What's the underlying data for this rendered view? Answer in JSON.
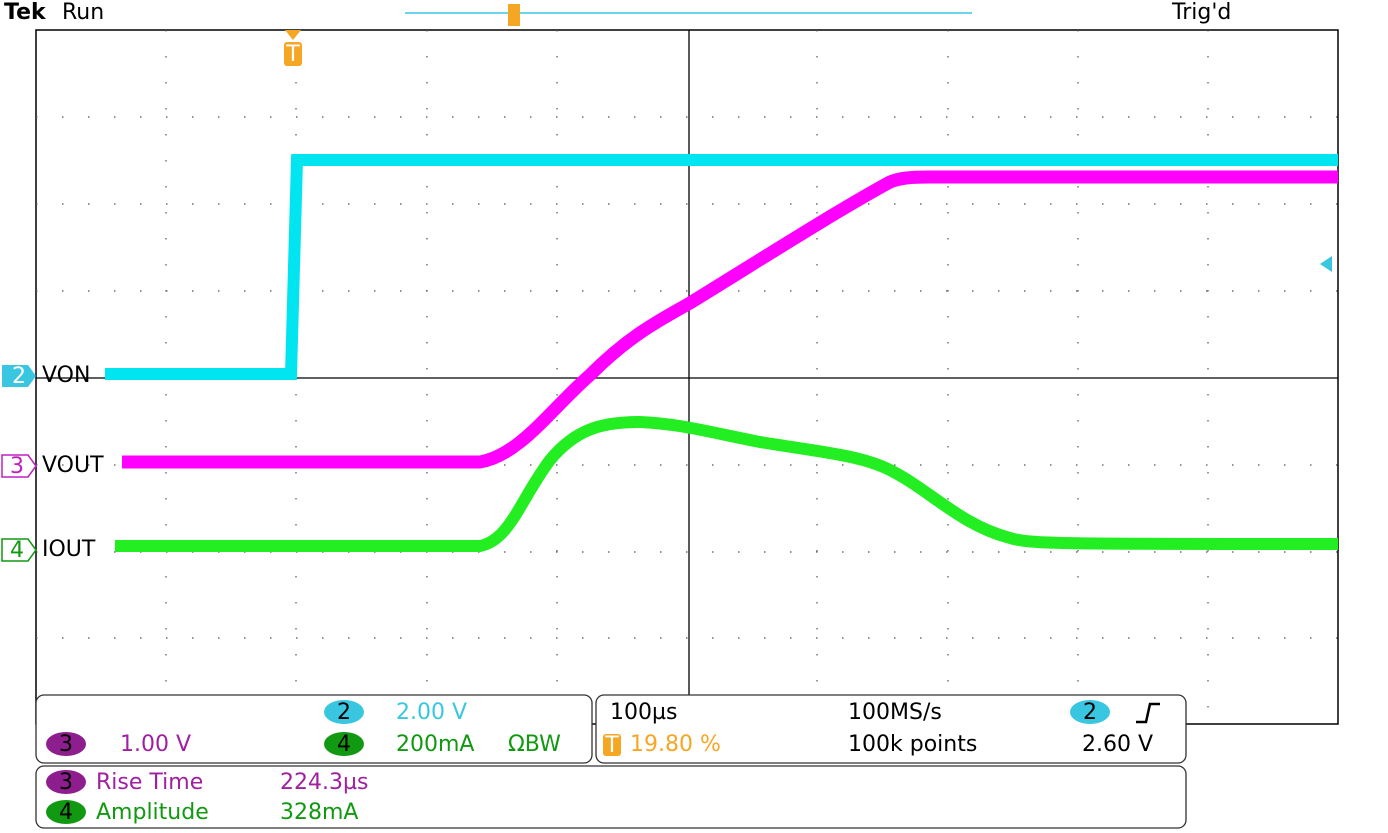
{
  "header": {
    "brand": "Tek",
    "status": "Run",
    "trigger_status": "Trig'd"
  },
  "trigger_marker": "T",
  "channels": [
    {
      "number": "2",
      "label": "VON"
    },
    {
      "number": "3",
      "label": "VOUT"
    },
    {
      "number": "4",
      "label": "IOUT"
    }
  ],
  "vertical_panel": {
    "ch2": {
      "number": "2",
      "scale": "2.00 V"
    },
    "ch3": {
      "number": "3",
      "scale": "1.00 V"
    },
    "ch4": {
      "number": "4",
      "scale": "200mA",
      "bandwidth_symbol": "ΩBW"
    }
  },
  "horizontal_panel": {
    "time_per_div": "100µs",
    "sample_rate": "100MS/s",
    "trigger_marker": "T",
    "trigger_position": "19.80 %",
    "record_length": "100k points",
    "trigger_source": "2",
    "trigger_level": "2.60 V"
  },
  "measurements": [
    {
      "channel": "3",
      "name": "Rise Time",
      "value": "224.3µs"
    },
    {
      "channel": "4",
      "name": "Amplitude",
      "value": "328mA"
    }
  ]
}
